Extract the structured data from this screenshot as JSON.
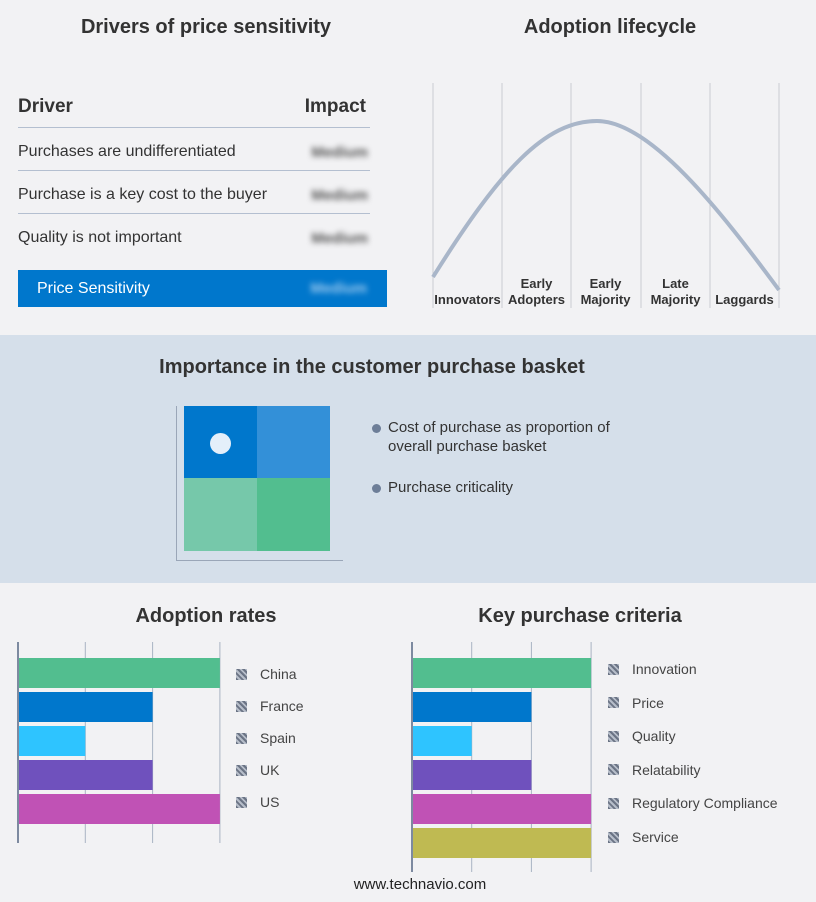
{
  "drivers": {
    "title": "Drivers of price sensitivity",
    "col_driver": "Driver",
    "col_impact": "Impact",
    "rows": [
      {
        "driver": "Purchases are undifferentiated",
        "impact": "Medium"
      },
      {
        "driver": "Purchase is a key cost to the buyer",
        "impact": "Medium"
      },
      {
        "driver": "Quality is not important",
        "impact": "Medium"
      }
    ],
    "summary": {
      "label": "Price Sensitivity",
      "impact": "Medium"
    },
    "accent": "#0077cc"
  },
  "lifecycle": {
    "title": "Adoption lifecycle",
    "stages": [
      "Innovators",
      "Early\nAdopters",
      "Early\nMajority",
      "Late\nMajority",
      "Laggards"
    ]
  },
  "basket": {
    "title": "Importance in the customer purchase basket",
    "bullets": [
      "Cost of purchase as proportion of overall purchase basket",
      "Purchase criticality"
    ],
    "quadrant_colors": [
      "#0077cc",
      "#3390d8",
      "#76c8aa",
      "#52be8f"
    ],
    "marker_quadrant": "top-left"
  },
  "footer": "www.technavio.com",
  "chart_data": [
    {
      "type": "bar",
      "orientation": "horizontal",
      "title": "Adoption rates",
      "categories": [
        "China",
        "France",
        "Spain",
        "UK",
        "US"
      ],
      "values": [
        3,
        2,
        1,
        2,
        3
      ],
      "xlim": [
        0,
        3
      ],
      "grid": true,
      "legend": "right",
      "colors": [
        "#52be8f",
        "#0077cc",
        "#2ec4ff",
        "#6f51bd",
        "#c052b5"
      ]
    },
    {
      "type": "bar",
      "orientation": "horizontal",
      "title": "Key purchase criteria",
      "categories": [
        "Innovation",
        "Price",
        "Quality",
        "Relatability",
        "Regulatory Compliance",
        "Service"
      ],
      "values": [
        3,
        2,
        1,
        2,
        3,
        3
      ],
      "xlim": [
        0,
        3
      ],
      "grid": true,
      "legend": "right",
      "colors": [
        "#52be8f",
        "#0077cc",
        "#2ec4ff",
        "#6f51bd",
        "#c052b5",
        "#bfba52"
      ]
    }
  ]
}
